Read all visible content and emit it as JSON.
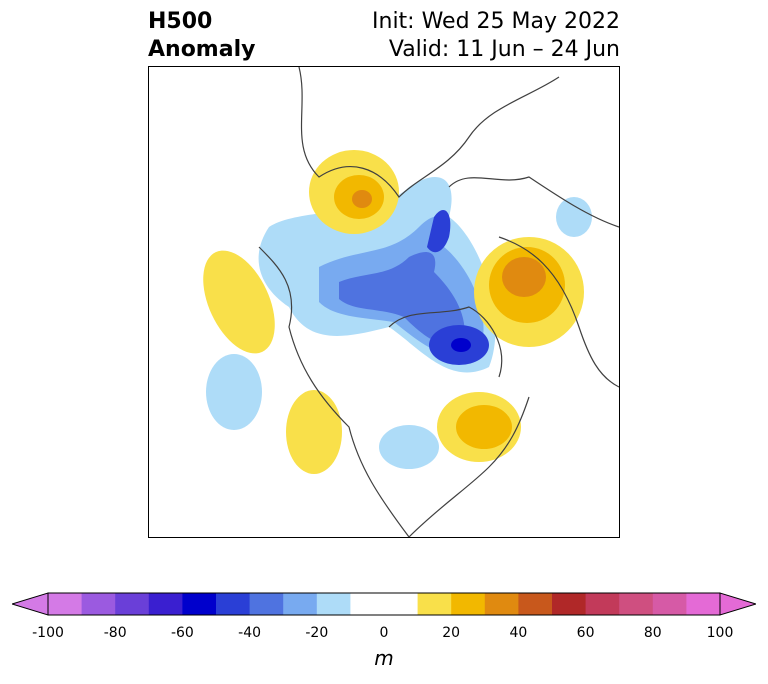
{
  "title": {
    "left_line1": "H500",
    "left_line2": "Anomaly",
    "right_line1": "Init: Wed 25 May 2022",
    "right_line2": "Valid: 11 Jun – 24 Jun"
  },
  "colorbar": {
    "unit": "m",
    "ticks": [
      "-100",
      "-80",
      "-60",
      "-40",
      "-20",
      "0",
      "20",
      "40",
      "60",
      "80",
      "100"
    ],
    "bins": [
      {
        "color": "#d47ae6"
      },
      {
        "color": "#9b5ae0"
      },
      {
        "color": "#6a3fd8"
      },
      {
        "color": "#3a1fd0"
      },
      {
        "color": "#0000cc"
      },
      {
        "color": "#2a3fd6"
      },
      {
        "color": "#4f73e0"
      },
      {
        "color": "#78aaf0"
      },
      {
        "color": "#aedcf8"
      },
      {
        "color": "#ffffff"
      },
      {
        "color": "#ffffff"
      },
      {
        "color": "#f9e04a"
      },
      {
        "color": "#f2b800"
      },
      {
        "color": "#e08a10"
      },
      {
        "color": "#c8581c"
      },
      {
        "color": "#b02828"
      },
      {
        "color": "#c23a5a"
      },
      {
        "color": "#cf4f80"
      },
      {
        "color": "#d65aa6"
      },
      {
        "color": "#e46ad6"
      }
    ],
    "under_color": "#d47ae6",
    "over_color": "#e46ad6"
  }
}
